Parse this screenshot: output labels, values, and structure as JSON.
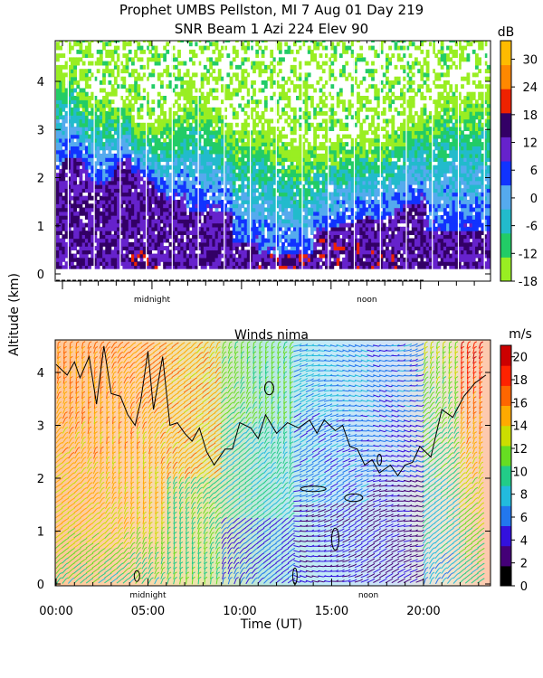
{
  "title_line1": "Prophet  UMBS Pellston, MI    7 Aug 01 Day 219",
  "title_line2": "SNR Beam 1 Azi 224 Elev 90",
  "y_axis_label": "Altitude (km)",
  "chart_data": [
    {
      "id": "snr",
      "type": "heatmap",
      "title": "SNR Beam 1 Azi 224 Elev 90",
      "ylabel": "Altitude (km)",
      "yticks": [
        "0",
        "1",
        "2",
        "3",
        "4"
      ],
      "ylim": [
        0,
        4.8
      ],
      "xlim": [
        0,
        24
      ],
      "x_annotations": [
        {
          "label": "midnight",
          "x_hours": 5
        },
        {
          "label": "noon",
          "x_hours": 17
        }
      ],
      "colorbar": {
        "label": "dB",
        "ticks": [
          "-18",
          "-12",
          "-6",
          "0",
          "6",
          "12",
          "18",
          "24",
          "30"
        ],
        "range": [
          -18,
          34
        ],
        "colors": [
          "#99ee22",
          "#22cc66",
          "#22bbcc",
          "#55aaee",
          "#1133ff",
          "#6622cc",
          "#330066",
          "#ee2200",
          "#ff8800",
          "#ffbb00"
        ]
      }
    },
    {
      "id": "winds",
      "type": "heatmap",
      "title": "Winds nima",
      "xlabel": "Time (UT)",
      "ylabel": "Altitude (km)",
      "xticks": [
        "00:00",
        "05:00",
        "10:00",
        "15:00",
        "20:00"
      ],
      "yticks": [
        "0",
        "1",
        "2",
        "3",
        "4"
      ],
      "xlim": [
        0,
        24
      ],
      "ylim": [
        0,
        4.6
      ],
      "x_annotations": [
        {
          "label": "midnight",
          "x_hours": 5
        },
        {
          "label": "noon",
          "x_hours": 17
        }
      ],
      "colorbar": {
        "label": "m/s",
        "ticks": [
          "0",
          "2",
          "4",
          "6",
          "8",
          "10",
          "12",
          "14",
          "16",
          "18",
          "20"
        ],
        "range": [
          0,
          21
        ],
        "colors": [
          "#000000",
          "#440077",
          "#3311dd",
          "#2277ee",
          "#22bbdd",
          "#22cc88",
          "#66dd22",
          "#ccdd00",
          "#ffaa00",
          "#ff6600",
          "#ff2200",
          "#cc0000"
        ]
      }
    }
  ]
}
